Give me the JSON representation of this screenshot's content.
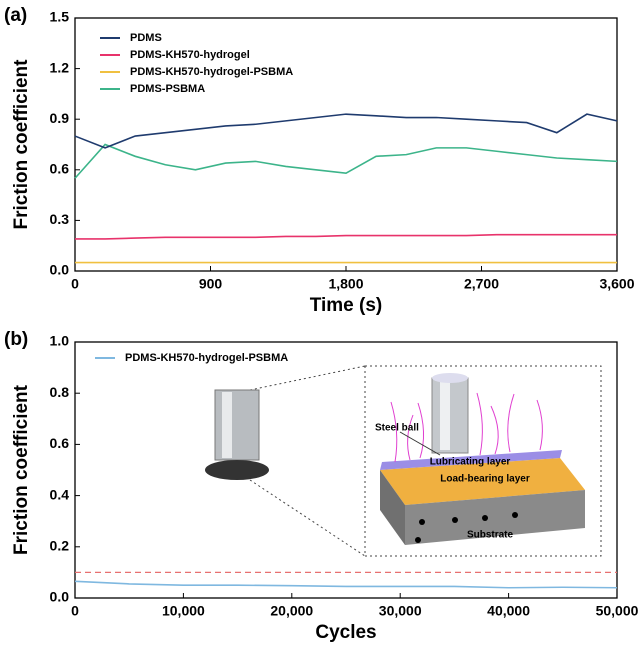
{
  "chart_data": [
    {
      "type": "line",
      "panel_label": "(a)",
      "x_label": "Time (s)",
      "y_label": "Friction coefficient",
      "xlim": [
        0,
        3600
      ],
      "xticks": [
        0,
        900,
        {
          "value": 1800,
          "label": "1,800"
        },
        {
          "value": 2700,
          "label": "2,700"
        },
        {
          "value": 3600,
          "label": "3,600"
        }
      ],
      "ylim": [
        0,
        1.5
      ],
      "yticks": [
        {
          "value": 0,
          "label": "0.0"
        },
        0.3,
        0.6,
        0.9,
        1.2,
        1.5
      ],
      "x": [
        0,
        200,
        400,
        600,
        800,
        1000,
        1200,
        1400,
        1600,
        1800,
        2000,
        2200,
        2400,
        2600,
        2800,
        3000,
        3200,
        3400,
        3600
      ],
      "series": [
        {
          "name": "PDMS",
          "color": "#1f3b6e",
          "values": [
            0.8,
            0.73,
            0.8,
            0.82,
            0.84,
            0.86,
            0.87,
            0.89,
            0.91,
            0.93,
            0.92,
            0.91,
            0.91,
            0.9,
            0.89,
            0.88,
            0.82,
            0.93,
            0.89
          ]
        },
        {
          "name": "PDMS-KH570-hydrogel",
          "color": "#e8336b",
          "values": [
            0.19,
            0.19,
            0.195,
            0.2,
            0.2,
            0.2,
            0.2,
            0.205,
            0.205,
            0.21,
            0.21,
            0.21,
            0.21,
            0.21,
            0.215,
            0.215,
            0.215,
            0.215,
            0.215
          ]
        },
        {
          "name": "PDMS-KH570-hydrogel-PSBMA",
          "color": "#f0c040",
          "values": [
            0.05,
            0.05,
            0.05,
            0.05,
            0.05,
            0.05,
            0.05,
            0.05,
            0.05,
            0.05,
            0.05,
            0.05,
            0.05,
            0.05,
            0.05,
            0.05,
            0.05,
            0.05,
            0.05
          ]
        },
        {
          "name": "PDMS-PSBMA",
          "color": "#3cb48a",
          "values": [
            0.55,
            0.75,
            0.68,
            0.63,
            0.6,
            0.64,
            0.65,
            0.62,
            0.6,
            0.58,
            0.68,
            0.69,
            0.73,
            0.73,
            0.71,
            0.69,
            0.67,
            0.66,
            0.65
          ]
        }
      ]
    },
    {
      "type": "line",
      "panel_label": "(b)",
      "x_label": "Cycles",
      "y_label": "Friction coefficient",
      "xlim": [
        0,
        50000
      ],
      "xticks": [
        0,
        {
          "value": 10000,
          "label": "10,000"
        },
        {
          "value": 20000,
          "label": "20,000"
        },
        {
          "value": 30000,
          "label": "30,000"
        },
        {
          "value": 40000,
          "label": "40,000"
        },
        {
          "value": 50000,
          "label": "50,000"
        }
      ],
      "ylim": [
        0,
        1
      ],
      "yticks": [
        {
          "value": 0,
          "label": "0.0"
        },
        0.2,
        0.4,
        0.6,
        0.8,
        {
          "value": 1,
          "label": "1.0"
        }
      ],
      "x": [
        0,
        5000,
        10000,
        15000,
        20000,
        25000,
        30000,
        35000,
        40000,
        45000,
        50000
      ],
      "series": [
        {
          "name": "PDMS-KH570-hydrogel-PSBMA",
          "color": "#7fb8e0",
          "values": [
            0.065,
            0.055,
            0.05,
            0.05,
            0.048,
            0.045,
            0.045,
            0.045,
            0.04,
            0.042,
            0.04
          ]
        }
      ],
      "reference_line": {
        "value": 0.1,
        "color": "#e87070"
      },
      "annotations": [
        "Steel ball",
        "Lubricating layer",
        "Load-bearing layer",
        "Substrate"
      ]
    }
  ]
}
